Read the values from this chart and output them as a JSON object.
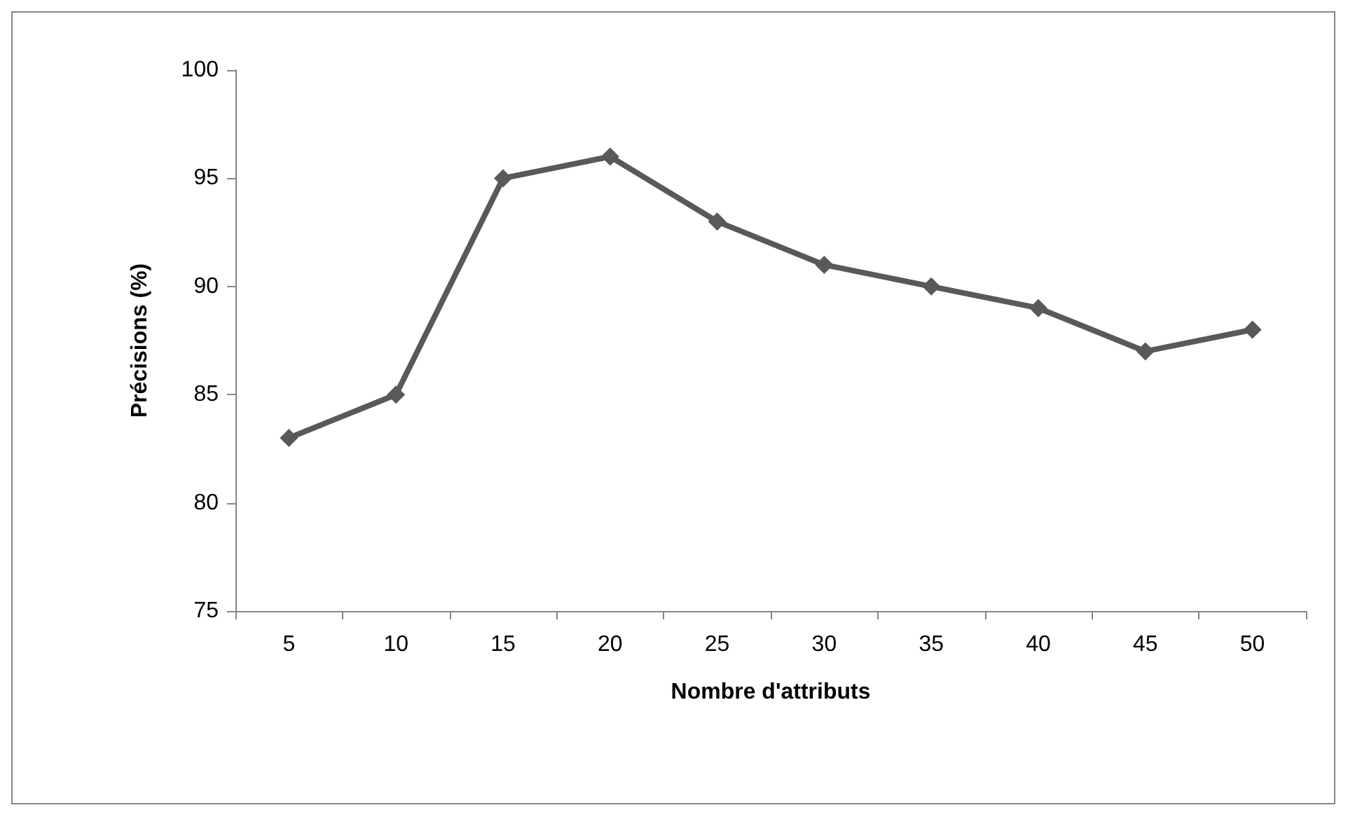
{
  "chart_data": {
    "type": "line",
    "xlabel": "Nombre d'attributs",
    "ylabel": "Précisions (%)",
    "categories": [
      "5",
      "10",
      "15",
      "20",
      "25",
      "30",
      "35",
      "40",
      "45",
      "50"
    ],
    "series": [
      {
        "color": "#595959",
        "values": [
          83,
          85,
          95,
          96,
          93,
          91,
          90,
          89,
          87,
          88
        ]
      }
    ],
    "ylim": [
      75,
      100
    ],
    "yticks": [
      75,
      80,
      85,
      90,
      95,
      100
    ],
    "grid": false,
    "marker": "diamond",
    "line_style": "solid"
  }
}
